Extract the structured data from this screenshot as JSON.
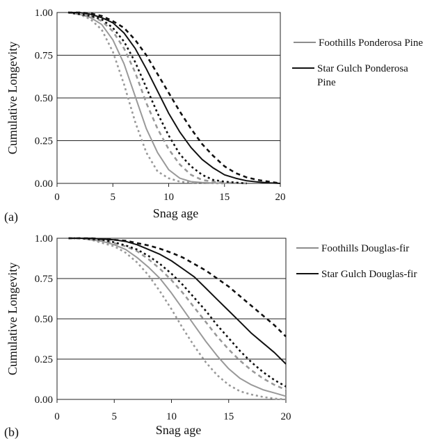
{
  "chart_data": [
    {
      "type": "line",
      "panel_label": "(a)",
      "xlabel": "Snag age",
      "ylabel": "Cumulative Longevity",
      "xlim": [
        0,
        20
      ],
      "ylim": [
        0,
        1
      ],
      "xticks": [
        "0",
        "5",
        "10",
        "15",
        "20"
      ],
      "yticks": [
        "0.00",
        "0.25",
        "0.50",
        "0.75",
        "1.00"
      ],
      "grid": "horizontal",
      "legend_position": "right",
      "legend": [
        {
          "label": "Foothills Ponderosa Pine",
          "color": "#8c8c8c"
        },
        {
          "label": "Star Gulch Ponderosa",
          "label2": "Pine",
          "color": "#111111"
        }
      ],
      "series": [
        {
          "color": "#999999",
          "style": "dotted",
          "x": [
            1,
            2,
            3,
            4,
            5,
            6,
            7,
            8,
            9,
            10,
            11,
            12,
            13,
            14,
            15
          ],
          "y": [
            1.0,
            0.99,
            0.96,
            0.9,
            0.77,
            0.58,
            0.36,
            0.18,
            0.07,
            0.03,
            0.01,
            0.005,
            0.002,
            0.001,
            0.0
          ]
        },
        {
          "color": "#999999",
          "style": "solid",
          "x": [
            1,
            2,
            3,
            4,
            5,
            6,
            7,
            8,
            9,
            10,
            11,
            12,
            13,
            14,
            15,
            16
          ],
          "y": [
            1.0,
            0.99,
            0.97,
            0.93,
            0.84,
            0.7,
            0.51,
            0.32,
            0.18,
            0.08,
            0.03,
            0.01,
            0.005,
            0.002,
            0.001,
            0.0
          ]
        },
        {
          "color": "#999999",
          "style": "dashed",
          "x": [
            1,
            2,
            3,
            4,
            5,
            6,
            7,
            8,
            9,
            10,
            11,
            12,
            13,
            14,
            15,
            16,
            17
          ],
          "y": [
            1.0,
            0.99,
            0.98,
            0.95,
            0.89,
            0.79,
            0.65,
            0.47,
            0.32,
            0.2,
            0.11,
            0.05,
            0.02,
            0.01,
            0.005,
            0.002,
            0.0
          ]
        },
        {
          "color": "#111111",
          "style": "dotted",
          "x": [
            1,
            2,
            3,
            4,
            5,
            6,
            7,
            8,
            9,
            10,
            11,
            12,
            13,
            14,
            15,
            16,
            17
          ],
          "y": [
            1.0,
            0.99,
            0.98,
            0.96,
            0.91,
            0.83,
            0.71,
            0.56,
            0.41,
            0.28,
            0.17,
            0.1,
            0.05,
            0.02,
            0.01,
            0.005,
            0.0
          ]
        },
        {
          "color": "#111111",
          "style": "solid",
          "x": [
            1,
            2,
            3,
            4,
            5,
            6,
            7,
            8,
            9,
            10,
            11,
            12,
            13,
            14,
            15,
            16,
            17,
            18,
            19,
            20
          ],
          "y": [
            1.0,
            1.0,
            0.99,
            0.97,
            0.94,
            0.88,
            0.79,
            0.67,
            0.54,
            0.41,
            0.3,
            0.21,
            0.14,
            0.09,
            0.05,
            0.03,
            0.015,
            0.008,
            0.003,
            0.0
          ]
        },
        {
          "color": "#111111",
          "style": "dashed",
          "x": [
            1,
            2,
            3,
            4,
            5,
            6,
            7,
            8,
            9,
            10,
            11,
            12,
            13,
            14,
            15,
            16,
            17,
            18,
            19,
            20
          ],
          "y": [
            1.0,
            1.0,
            0.995,
            0.98,
            0.95,
            0.91,
            0.84,
            0.75,
            0.64,
            0.53,
            0.42,
            0.32,
            0.23,
            0.16,
            0.1,
            0.06,
            0.035,
            0.02,
            0.01,
            0.0
          ]
        }
      ]
    },
    {
      "type": "line",
      "panel_label": "(b)",
      "xlabel": "Snag age",
      "ylabel": "Cumulative Longevity",
      "xlim": [
        0,
        20
      ],
      "ylim": [
        0,
        1
      ],
      "xticks": [
        "0",
        "5",
        "10",
        "15",
        "20"
      ],
      "yticks": [
        "0.00",
        "0.25",
        "0.50",
        "0.75",
        "1.00"
      ],
      "grid": "horizontal",
      "legend_position": "right",
      "legend": [
        {
          "label": "Foothills Douglas-fir",
          "color": "#8c8c8c"
        },
        {
          "label": "Star Gulch Douglas-fir",
          "color": "#111111"
        }
      ],
      "series": [
        {
          "color": "#999999",
          "style": "dotted",
          "x": [
            1,
            2,
            3,
            4,
            5,
            6,
            7,
            8,
            9,
            10,
            11,
            12,
            13,
            14,
            15,
            16,
            17,
            18,
            19,
            20
          ],
          "y": [
            1.0,
            1.0,
            0.99,
            0.97,
            0.95,
            0.91,
            0.85,
            0.77,
            0.67,
            0.56,
            0.44,
            0.33,
            0.23,
            0.15,
            0.09,
            0.05,
            0.03,
            0.015,
            0.005,
            0.0
          ]
        },
        {
          "color": "#999999",
          "style": "solid",
          "x": [
            1,
            2,
            3,
            4,
            5,
            6,
            7,
            8,
            9,
            10,
            11,
            12,
            13,
            14,
            15,
            16,
            17,
            18,
            19,
            20
          ],
          "y": [
            1.0,
            1.0,
            0.99,
            0.98,
            0.96,
            0.93,
            0.88,
            0.82,
            0.75,
            0.66,
            0.56,
            0.46,
            0.36,
            0.27,
            0.19,
            0.13,
            0.09,
            0.06,
            0.04,
            0.02
          ]
        },
        {
          "color": "#999999",
          "style": "dashed",
          "x": [
            1,
            2,
            3,
            4,
            5,
            6,
            7,
            8,
            9,
            10,
            11,
            12,
            13,
            14,
            15,
            16,
            17,
            18,
            19,
            20
          ],
          "y": [
            1.0,
            1.0,
            0.995,
            0.985,
            0.97,
            0.95,
            0.92,
            0.87,
            0.81,
            0.74,
            0.66,
            0.57,
            0.48,
            0.39,
            0.31,
            0.24,
            0.18,
            0.13,
            0.09,
            0.06
          ]
        },
        {
          "color": "#111111",
          "style": "dotted",
          "x": [
            1,
            2,
            3,
            4,
            5,
            6,
            7,
            8,
            9,
            10,
            11,
            12,
            13,
            14,
            15,
            16,
            17,
            18,
            19,
            20
          ],
          "y": [
            1.0,
            1.0,
            0.995,
            0.99,
            0.975,
            0.955,
            0.93,
            0.89,
            0.84,
            0.78,
            0.71,
            0.63,
            0.55,
            0.46,
            0.38,
            0.3,
            0.23,
            0.17,
            0.12,
            0.08
          ]
        },
        {
          "color": "#111111",
          "style": "solid",
          "x": [
            1,
            2,
            3,
            4,
            5,
            6,
            7,
            8,
            9,
            10,
            11,
            12,
            13,
            14,
            15,
            16,
            17,
            18,
            19,
            20
          ],
          "y": [
            1.0,
            1.0,
            1.0,
            0.995,
            0.99,
            0.98,
            0.96,
            0.93,
            0.9,
            0.86,
            0.81,
            0.76,
            0.69,
            0.62,
            0.55,
            0.48,
            0.41,
            0.35,
            0.29,
            0.22
          ]
        },
        {
          "color": "#111111",
          "style": "dashed",
          "x": [
            1,
            2,
            3,
            4,
            5,
            6,
            7,
            8,
            9,
            10,
            11,
            12,
            13,
            14,
            15,
            16,
            17,
            18,
            19,
            20
          ],
          "y": [
            1.0,
            1.0,
            1.0,
            0.995,
            0.99,
            0.985,
            0.97,
            0.955,
            0.935,
            0.91,
            0.88,
            0.84,
            0.8,
            0.75,
            0.7,
            0.64,
            0.58,
            0.52,
            0.46,
            0.39
          ]
        }
      ]
    }
  ]
}
